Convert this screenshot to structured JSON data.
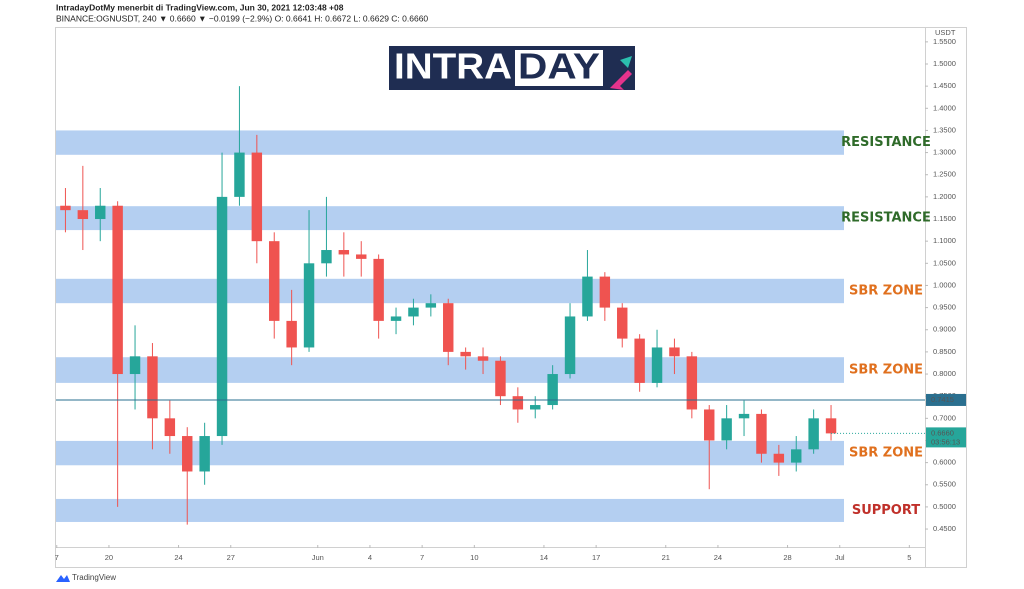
{
  "header": {
    "publisher": "IntradayDotMy menerbit di TradingView.com, Jun 30, 2021 12:03:48 +08",
    "symbol_line": "BINANCE:OGNUSDT, 240 ▼ 0.6660 ▼ −0.0199 (−2.9%) O: 0.6641 H: 0.6672 L: 0.6629 C: 0.6660"
  },
  "logo": {
    "left": "INTRA",
    "right": "DAY"
  },
  "footer": "TradingView",
  "chart_data": {
    "type": "candlestick",
    "currency": "USDT",
    "x": [
      0.5,
      1.5,
      2.5,
      3.5,
      4.5,
      5.5,
      6.5,
      7.5,
      8.5,
      9.5,
      10.5,
      11.5,
      12.5,
      13.5,
      14.5,
      15.5,
      16.5,
      17.5,
      18.5,
      19.5,
      20.5,
      21.5,
      22.5,
      23.5,
      24.5,
      25.5,
      26.5,
      27.5,
      28.5,
      29.5,
      30.5,
      31.5,
      32.5,
      33.5,
      34.5,
      35.5,
      36.5,
      37.5,
      38.5,
      39.5,
      40.5,
      41.5,
      42.5,
      43.5,
      44.5
    ],
    "open": [
      1.18,
      1.17,
      1.15,
      1.18,
      0.8,
      0.84,
      0.7,
      0.66,
      0.58,
      0.66,
      1.2,
      1.3,
      1.1,
      0.92,
      0.86,
      1.05,
      1.08,
      1.07,
      1.06,
      0.92,
      0.93,
      0.95,
      0.96,
      0.85,
      0.84,
      0.83,
      0.75,
      0.72,
      0.73,
      0.8,
      0.93,
      1.02,
      0.95,
      0.88,
      0.78,
      0.86,
      0.84,
      0.72,
      0.65,
      0.7,
      0.71,
      0.62,
      0.6,
      0.63,
      0.7
    ],
    "high": [
      1.22,
      1.27,
      1.22,
      1.19,
      0.91,
      0.87,
      0.74,
      0.68,
      0.69,
      1.3,
      1.45,
      1.34,
      1.12,
      0.99,
      1.17,
      1.2,
      1.12,
      1.1,
      1.07,
      0.95,
      0.97,
      0.98,
      0.97,
      0.86,
      0.86,
      0.84,
      0.77,
      0.75,
      0.82,
      0.96,
      1.08,
      1.03,
      0.96,
      0.89,
      0.9,
      0.88,
      0.85,
      0.73,
      0.73,
      0.74,
      0.72,
      0.64,
      0.66,
      0.72,
      0.73
    ],
    "low": [
      1.12,
      1.08,
      1.1,
      0.5,
      0.72,
      0.63,
      0.62,
      0.46,
      0.55,
      0.64,
      1.18,
      1.05,
      0.88,
      0.82,
      0.85,
      1.02,
      1.02,
      1.02,
      0.88,
      0.89,
      0.91,
      0.93,
      0.82,
      0.81,
      0.8,
      0.73,
      0.69,
      0.7,
      0.72,
      0.79,
      0.92,
      0.92,
      0.86,
      0.76,
      0.77,
      0.8,
      0.7,
      0.54,
      0.63,
      0.66,
      0.6,
      0.57,
      0.58,
      0.62,
      0.65
    ],
    "close": [
      1.17,
      1.15,
      1.18,
      0.8,
      0.84,
      0.7,
      0.66,
      0.58,
      0.66,
      1.2,
      1.3,
      1.1,
      0.92,
      0.86,
      1.05,
      1.08,
      1.07,
      1.06,
      0.92,
      0.93,
      0.95,
      0.96,
      0.85,
      0.84,
      0.83,
      0.75,
      0.72,
      0.73,
      0.8,
      0.93,
      1.02,
      0.95,
      0.88,
      0.78,
      0.86,
      0.84,
      0.72,
      0.65,
      0.7,
      0.71,
      0.62,
      0.6,
      0.63,
      0.7,
      0.666
    ],
    "up_color": "#26a69a",
    "down_color": "#ef5350",
    "xlim": [
      -0.1,
      49.9
    ],
    "xticks": [
      {
        "value": 0,
        "label": "7"
      },
      {
        "value": 3,
        "label": "20"
      },
      {
        "value": 7,
        "label": "24"
      },
      {
        "value": 10,
        "label": "27"
      },
      {
        "value": 15,
        "label": "Jun"
      },
      {
        "value": 18,
        "label": "4"
      },
      {
        "value": 21,
        "label": "7"
      },
      {
        "value": 24,
        "label": "10"
      },
      {
        "value": 28,
        "label": "14"
      },
      {
        "value": 31,
        "label": "17"
      },
      {
        "value": 35,
        "label": "21"
      },
      {
        "value": 38,
        "label": "24"
      },
      {
        "value": 42,
        "label": "28"
      },
      {
        "value": 45,
        "label": "Jul"
      },
      {
        "value": 49,
        "label": "5"
      }
    ],
    "ylim": [
      0.414,
      1.57
    ],
    "yticks": [
      {
        "value": 0.45,
        "label": "0.4500"
      },
      {
        "value": 0.5,
        "label": "0.5000"
      },
      {
        "value": 0.55,
        "label": "0.5500"
      },
      {
        "value": 0.6,
        "label": "0.6000"
      },
      {
        "value": 0.65,
        "label": "0.6500"
      },
      {
        "value": 0.7,
        "label": "0.7000"
      },
      {
        "value": 0.75,
        "label": "0.7500"
      },
      {
        "value": 0.8,
        "label": "0.8000"
      },
      {
        "value": 0.85,
        "label": "0.8500"
      },
      {
        "value": 0.9,
        "label": "0.9000"
      },
      {
        "value": 0.95,
        "label": "0.9500"
      },
      {
        "value": 1.0,
        "label": "1.0000"
      },
      {
        "value": 1.05,
        "label": "1.0500"
      },
      {
        "value": 1.1,
        "label": "1.1000"
      },
      {
        "value": 1.15,
        "label": "1.1500"
      },
      {
        "value": 1.2,
        "label": "1.2000"
      },
      {
        "value": 1.25,
        "label": "1.2500"
      },
      {
        "value": 1.3,
        "label": "1.3000"
      },
      {
        "value": 1.35,
        "label": "1.3500"
      },
      {
        "value": 1.4,
        "label": "1.4000"
      },
      {
        "value": 1.45,
        "label": "1.4500"
      },
      {
        "value": 1.5,
        "label": "1.5000"
      },
      {
        "value": 1.55,
        "label": "1.5500"
      }
    ],
    "zones": [
      {
        "label": "RESISTANCE",
        "low": 1.295,
        "high": 1.35,
        "label_color": "#2f6b2a"
      },
      {
        "label": "RESISTANCE",
        "low": 1.125,
        "high": 1.179,
        "label_color": "#2f6b2a"
      },
      {
        "label": "SBR ZONE",
        "low": 0.96,
        "high": 1.015,
        "label_color": "#e0701e"
      },
      {
        "label": "SBR ZONE",
        "low": 0.78,
        "high": 0.838,
        "label_color": "#e0701e"
      },
      {
        "label": "SBR ZONE",
        "low": 0.594,
        "high": 0.649,
        "label_color": "#e0701e"
      },
      {
        "label": "SUPPORT",
        "low": 0.466,
        "high": 0.518,
        "label_color": "#c0302a"
      }
    ],
    "zone_color": "#a7c7ee",
    "price_line": {
      "value": 0.7415,
      "color": "#2a6f8f"
    },
    "last_price": {
      "value": 0.666,
      "label": "0.6660",
      "countdown": "03:56:13",
      "color": "#26a69a"
    }
  }
}
